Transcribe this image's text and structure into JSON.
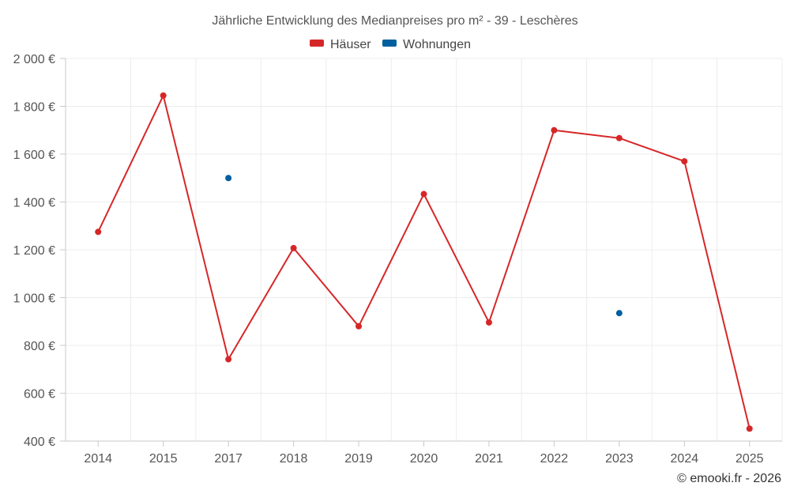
{
  "chart_data": {
    "type": "line",
    "title": "Jährliche Entwicklung des Medianpreises pro m² - 39 - Leschères",
    "categories": [
      "2014",
      "2015",
      "2017",
      "2018",
      "2019",
      "2020",
      "2021",
      "2022",
      "2023",
      "2024",
      "2025"
    ],
    "series": [
      {
        "name": "Häuser",
        "color": "#d62728",
        "values": [
          1275,
          1845,
          742,
          1207,
          880,
          1433,
          896,
          1700,
          1667,
          1570,
          452
        ]
      },
      {
        "name": "Wohnungen",
        "color": "#005f9e",
        "values": [
          null,
          null,
          1500,
          null,
          null,
          null,
          null,
          null,
          935,
          null,
          null
        ]
      }
    ],
    "yticks": [
      400,
      600,
      800,
      1000,
      1200,
      1400,
      1600,
      1800,
      2000
    ],
    "ytick_labels": [
      "400 €",
      "600 €",
      "800 €",
      "1 000 €",
      "1 200 €",
      "1 400 €",
      "1 600 €",
      "1 800 €",
      "2 000 €"
    ],
    "ylim": [
      400,
      2000
    ],
    "grid": true,
    "legend_position": "top-center",
    "xlabel": "",
    "ylabel": ""
  },
  "credit": "© emooki.fr - 2026"
}
